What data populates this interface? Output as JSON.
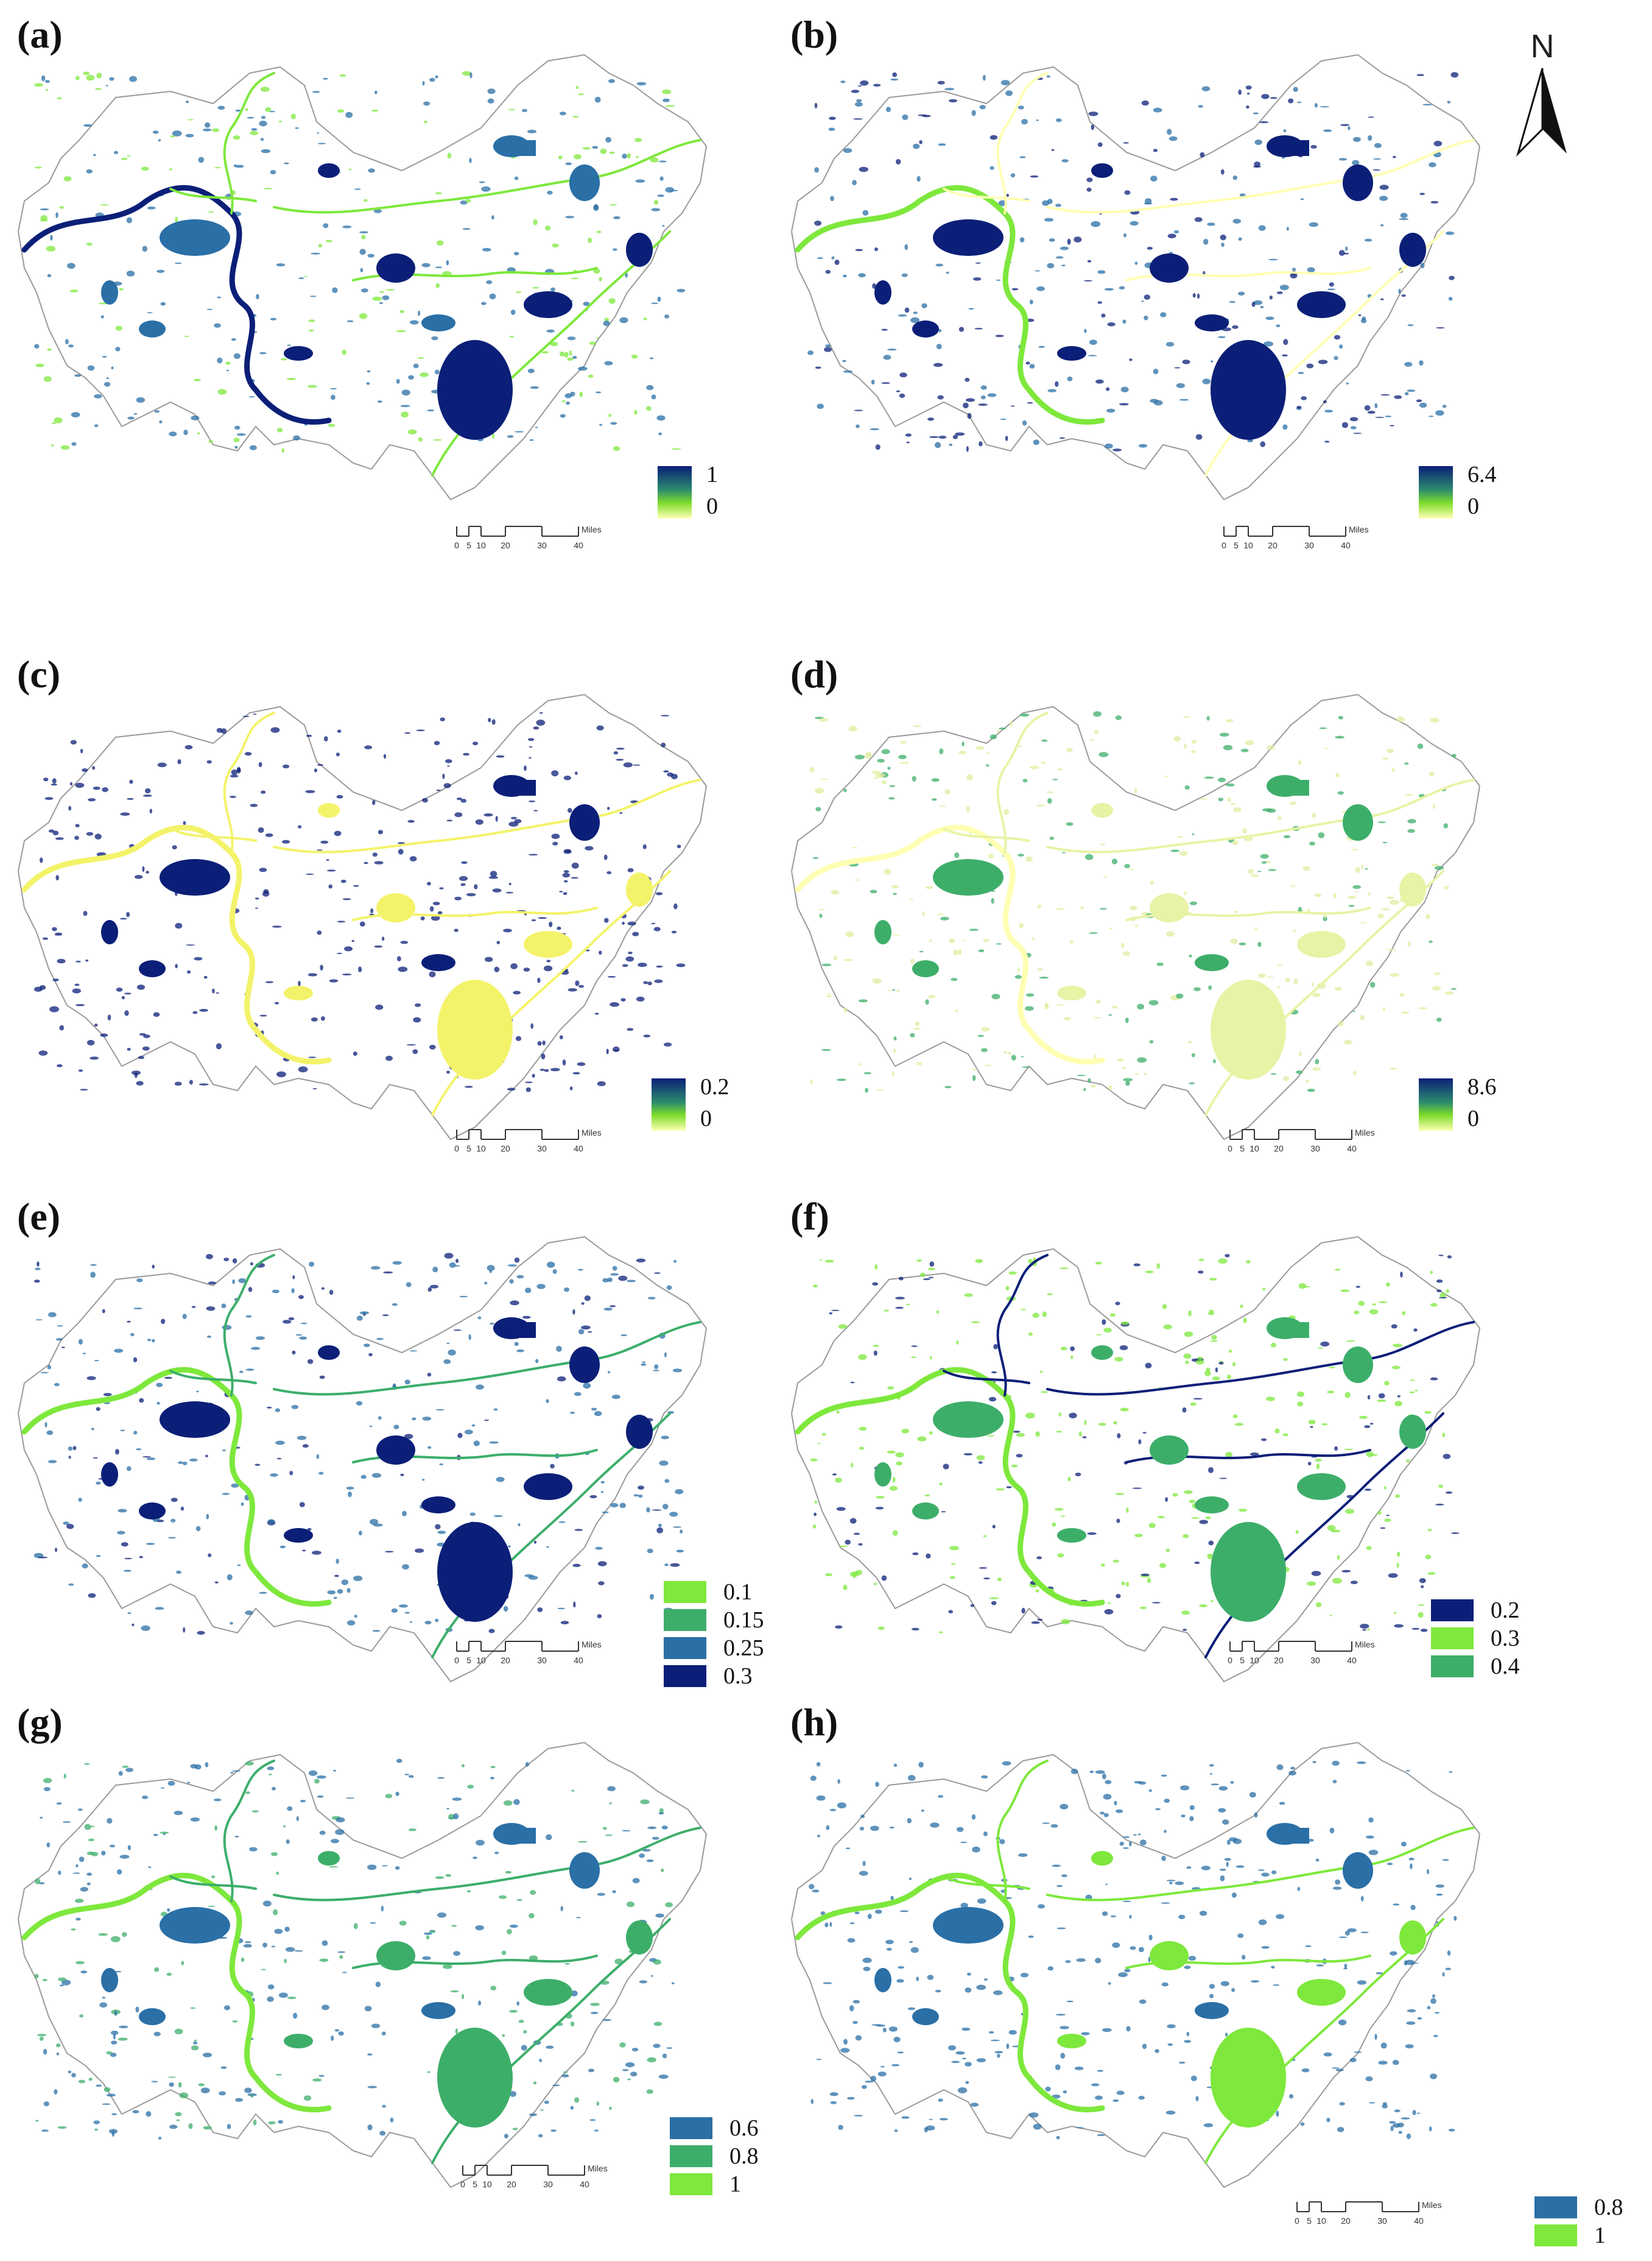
{
  "north_arrow": {
    "label": "N"
  },
  "scale_bar": {
    "ticks": [
      "0",
      "5",
      "10",
      "20",
      "30",
      "40"
    ],
    "unit": "Miles"
  },
  "colors": {
    "dark_navy": "#0b1f78",
    "steel_blue": "#2a6fa6",
    "teal_green": "#3dae6a",
    "bright_green": "#7ee83c",
    "pale_yellow": "#ffffb3",
    "yellow": "#f3f36a",
    "boundary_gray": "#9a9a9a"
  },
  "panels": [
    {
      "label": "(a)",
      "legend_type": "gradient",
      "legend_max": "1",
      "legend_min": "0",
      "theme": "ab"
    },
    {
      "label": "(b)",
      "legend_type": "gradient",
      "legend_max": "6.4",
      "legend_min": "0",
      "theme": "b"
    },
    {
      "label": "(c)",
      "legend_type": "gradient",
      "legend_max": "0.2",
      "legend_min": "0",
      "theme": "c"
    },
    {
      "label": "(d)",
      "legend_type": "gradient",
      "legend_max": "8.6",
      "legend_min": "0",
      "theme": "d"
    },
    {
      "label": "(e)",
      "legend_type": "classes",
      "legend_items": [
        {
          "label": "0.1",
          "color": "#7ee83c"
        },
        {
          "label": "0.15",
          "color": "#3dae6a"
        },
        {
          "label": "0.25",
          "color": "#2a6fa6"
        },
        {
          "label": "0.3",
          "color": "#0b1f78"
        }
      ],
      "theme": "e"
    },
    {
      "label": "(f)",
      "legend_type": "classes",
      "legend_items": [
        {
          "label": "0.2",
          "color": "#0b1f78"
        },
        {
          "label": "0.3",
          "color": "#7ee83c"
        },
        {
          "label": "0.4",
          "color": "#3dae6a"
        }
      ],
      "theme": "f"
    },
    {
      "label": "(g)",
      "legend_type": "classes",
      "legend_items": [
        {
          "label": "0.6",
          "color": "#2a6fa6"
        },
        {
          "label": "0.8",
          "color": "#3dae6a"
        },
        {
          "label": "1",
          "color": "#7ee83c"
        }
      ],
      "theme": "g"
    },
    {
      "label": "(h)",
      "legend_type": "classes",
      "legend_items": [
        {
          "label": "0.8",
          "color": "#2a6fa6"
        },
        {
          "label": "1",
          "color": "#7ee83c"
        }
      ],
      "theme": "h"
    }
  ]
}
